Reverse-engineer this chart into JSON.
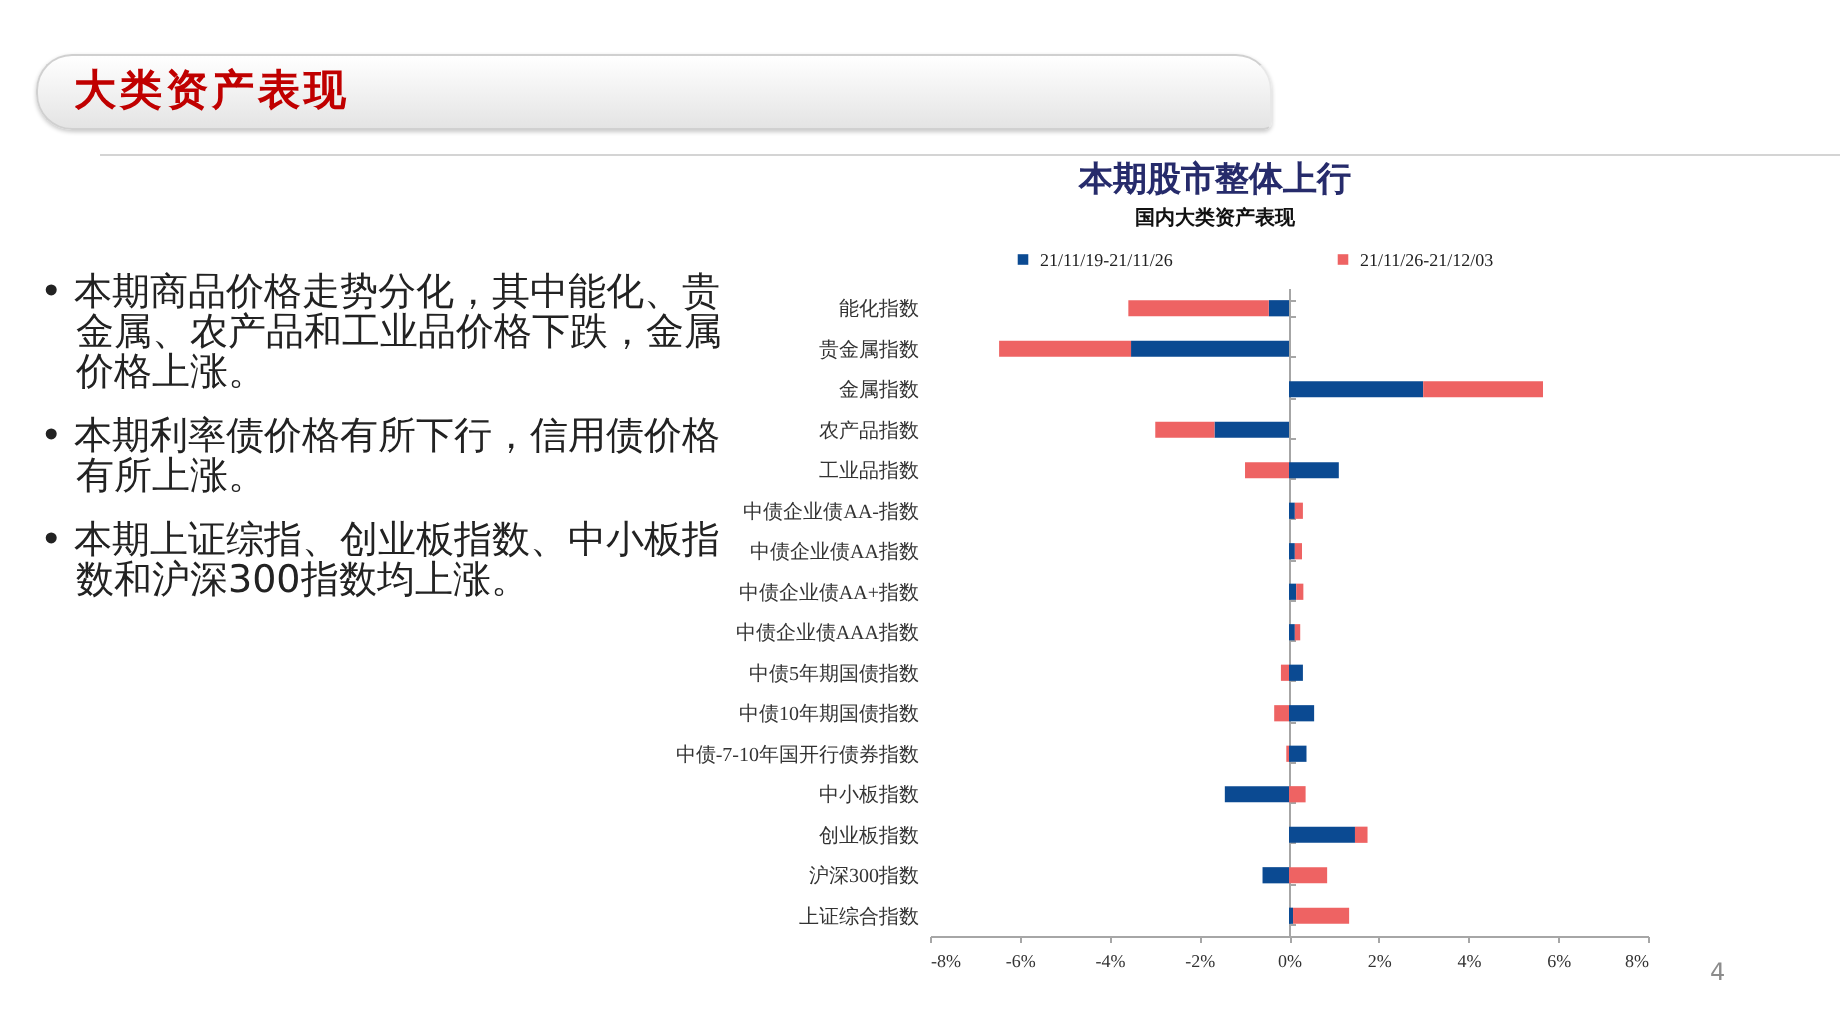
{
  "chart_data": {
    "type": "bar",
    "orientation": "horizontal",
    "stacked": true,
    "title": "本期股市整体上行",
    "subtitle": "国内大类资产表现",
    "categories": [
      "能化指数",
      "贵金属指数",
      "金属指数",
      "农产品指数",
      "工业品指数",
      "中债企业债AA-指数",
      "中债企业债AA指数",
      "中债企业债AA+指数",
      "中债企业债AAA指数",
      "中债5年期国债指数",
      "中债10年期国债指数",
      "中债-7-10年国开行债券指数",
      "中小板指数",
      "创业板指数",
      "沪深300指数",
      "上证综合指数"
    ],
    "series": [
      {
        "name": "21/11/19-21/11/26",
        "color": "#0b4a92",
        "values": [
          -0.45,
          -3.52,
          2.99,
          -1.66,
          1.11,
          0.13,
          0.13,
          0.16,
          0.13,
          0.31,
          0.56,
          0.39,
          -1.43,
          1.47,
          -0.59,
          0.09
        ]
      },
      {
        "name": "21/11/26-21/12/03",
        "color": "#ee6363",
        "values": [
          -3.13,
          -2.94,
          2.67,
          -1.32,
          -0.98,
          0.18,
          0.16,
          0.16,
          0.12,
          -0.18,
          -0.33,
          -0.06,
          0.37,
          0.28,
          0.85,
          1.25
        ]
      }
    ],
    "xlim": [
      -8,
      8
    ],
    "xticks": [
      {
        "value": -8,
        "label": "-8%"
      },
      {
        "value": -6,
        "label": "-6%"
      },
      {
        "value": -4,
        "label": "-4%"
      },
      {
        "value": -2,
        "label": "-2%"
      },
      {
        "value": 0,
        "label": "0%"
      },
      {
        "value": 2,
        "label": "2%"
      },
      {
        "value": 4,
        "label": "4%"
      },
      {
        "value": 6,
        "label": "6%"
      },
      {
        "value": 8,
        "label": "8%"
      }
    ],
    "legend": "top",
    "annotations": [
      "大类资产表现",
      "• 本期商品价格走势分化，其中能化、贵金属、农产品和工业品价格下跌，金属价格上涨。",
      "• 本期利率债价格有所下行，信用债价格有所上涨。",
      "• 本期上证综指、创业板指数、中小板指数和沪深300指数均上涨。",
      "4"
    ]
  }
}
